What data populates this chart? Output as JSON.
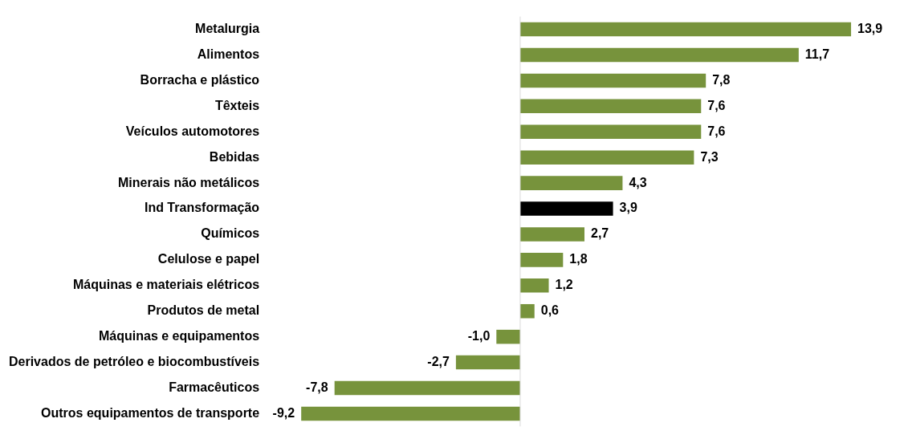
{
  "chart_data": {
    "type": "bar",
    "orientation": "horizontal",
    "categories": [
      "Metalurgia",
      "Alimentos",
      "Borracha e plástico",
      "Têxteis",
      "Veículos automotores",
      "Bebidas",
      "Minerais não metálicos",
      "Ind Transformação",
      "Químicos",
      "Celulose e papel",
      "Máquinas e materiais elétricos",
      "Produtos de metal",
      "Máquinas e equipamentos",
      "Derivados de petróleo e biocombustíveis",
      "Farmacêuticos",
      "Outros equipamentos de transporte"
    ],
    "values": [
      13.9,
      11.7,
      7.8,
      7.6,
      7.6,
      7.3,
      4.3,
      3.9,
      2.7,
      1.8,
      1.2,
      0.6,
      -1.0,
      -2.7,
      -7.8,
      -9.2
    ],
    "colors": [
      "#77933c",
      "#77933c",
      "#77933c",
      "#77933c",
      "#77933c",
      "#77933c",
      "#77933c",
      "#000000",
      "#77933c",
      "#77933c",
      "#77933c",
      "#77933c",
      "#77933c",
      "#77933c",
      "#77933c",
      "#77933c"
    ],
    "value_labels": [
      "13,9",
      "11,7",
      "7,8",
      "7,6",
      "7,6",
      "7,3",
      "4,3",
      "3,9",
      "2,7",
      "1,8",
      "1,2",
      "0,6",
      "-1,0",
      "-2,7",
      "-7,8",
      "-9,2"
    ],
    "grid": false,
    "legend": false,
    "tick_labels": "y"
  }
}
